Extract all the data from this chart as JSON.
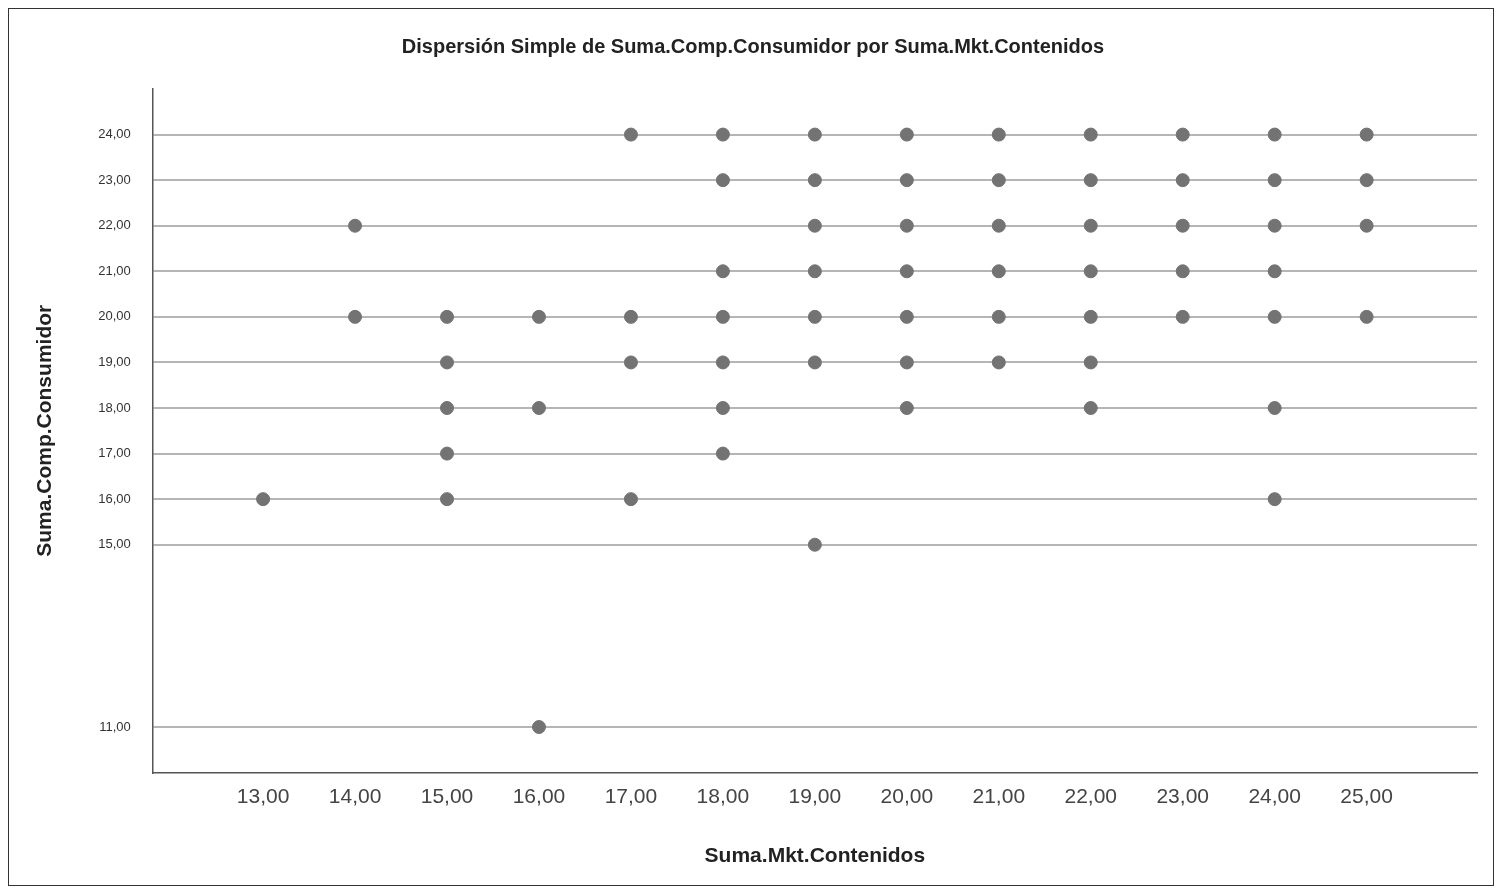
{
  "chart_data": {
    "type": "scatter",
    "title": "Dispersión Simple de Suma.Comp.Consumidor por Suma.Mkt.Contenidos",
    "xlabel": "Suma.Mkt.Contenidos",
    "ylabel": "Suma.Comp.Consumidor",
    "color": "#737373",
    "marker": "circle",
    "grid": "y",
    "legend": false,
    "xlim": [
      11.8,
      26.2
    ],
    "ylim": [
      10,
      25
    ],
    "xticks": [
      {
        "value": 13,
        "label": "13,00"
      },
      {
        "value": 14,
        "label": "14,00"
      },
      {
        "value": 15,
        "label": "15,00"
      },
      {
        "value": 16,
        "label": "16,00"
      },
      {
        "value": 17,
        "label": "17,00"
      },
      {
        "value": 18,
        "label": "18,00"
      },
      {
        "value": 19,
        "label": "19,00"
      },
      {
        "value": 20,
        "label": "20,00"
      },
      {
        "value": 21,
        "label": "21,00"
      },
      {
        "value": 22,
        "label": "22,00"
      },
      {
        "value": 23,
        "label": "23,00"
      },
      {
        "value": 24,
        "label": "24,00"
      },
      {
        "value": 25,
        "label": "25,00"
      }
    ],
    "yticks": [
      {
        "value": 11,
        "label": "11,00"
      },
      {
        "value": 15,
        "label": "15,00"
      },
      {
        "value": 16,
        "label": "16,00"
      },
      {
        "value": 17,
        "label": "17,00"
      },
      {
        "value": 18,
        "label": "18,00"
      },
      {
        "value": 19,
        "label": "19,00"
      },
      {
        "value": 20,
        "label": "20,00"
      },
      {
        "value": 21,
        "label": "21,00"
      },
      {
        "value": 22,
        "label": "22,00"
      },
      {
        "value": 23,
        "label": "23,00"
      },
      {
        "value": 24,
        "label": "24,00"
      }
    ],
    "x": [
      13,
      14,
      14,
      15,
      15,
      15,
      15,
      15,
      16,
      16,
      16,
      17,
      17,
      17,
      17,
      18,
      18,
      18,
      18,
      18,
      18,
      18,
      19,
      19,
      19,
      19,
      19,
      19,
      19,
      20,
      20,
      20,
      20,
      20,
      20,
      20,
      21,
      21,
      21,
      21,
      21,
      21,
      22,
      22,
      22,
      22,
      22,
      22,
      22,
      23,
      23,
      23,
      23,
      23,
      24,
      24,
      24,
      24,
      24,
      24,
      24,
      25,
      25,
      25,
      25
    ],
    "values": [
      16,
      22,
      20,
      20,
      19,
      18,
      17,
      16,
      20,
      18,
      11,
      24,
      20,
      19,
      16,
      24,
      23,
      21,
      20,
      19,
      18,
      17,
      24,
      23,
      22,
      21,
      20,
      19,
      15,
      24,
      23,
      22,
      21,
      20,
      19,
      18,
      24,
      23,
      22,
      21,
      20,
      19,
      24,
      23,
      22,
      21,
      20,
      19,
      18,
      24,
      23,
      22,
      21,
      20,
      24,
      23,
      22,
      21,
      20,
      18,
      16,
      24,
      23,
      22,
      20
    ]
  }
}
